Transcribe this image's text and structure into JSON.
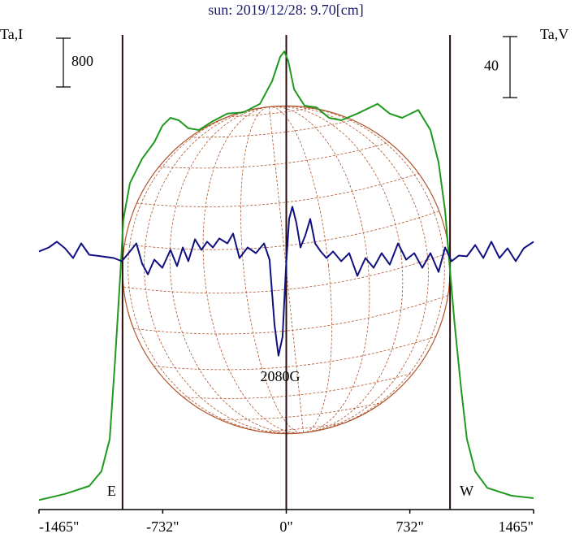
{
  "chart_data": {
    "type": "line",
    "title": "sun: 2019/12/28: 9.70[cm]",
    "xlim": [
      -1465,
      1465
    ],
    "xticks": [
      {
        "value": -1465,
        "label": "-1465\""
      },
      {
        "value": -732,
        "label": "-732\""
      },
      {
        "value": 0,
        "label": "0\""
      },
      {
        "value": 732,
        "label": "732\""
      },
      {
        "value": 1465,
        "label": "1465\""
      }
    ],
    "ylim": [
      0,
      7760
    ],
    "y2lim": [
      -167,
      143
    ],
    "scale_bar": 800,
    "scale_bar_y2": 40,
    "solar_radius": 970,
    "limb_labels": [
      "E",
      "W"
    ],
    "annotation": "2080G",
    "series": [
      {
        "name": "Ta,I",
        "color": "#1f9a1f",
        "x": [
          -1465,
          -1311,
          -1167,
          -1095,
          -1046,
          -1013,
          -984,
          -965,
          -926,
          -854,
          -782,
          -734,
          -686,
          -637,
          -580,
          -517,
          -445,
          -349,
          -253,
          -156,
          -84,
          -36,
          -12,
          12,
          46,
          108,
          180,
          253,
          325,
          421,
          541,
          613,
          686,
          782,
          854,
          902,
          941,
          969,
          998,
          1037,
          1070,
          1119,
          1191,
          1335,
          1465
        ],
        "values": [
          130,
          230,
          360,
          600,
          1130,
          2470,
          3800,
          4730,
          5330,
          5730,
          6000,
          6270,
          6400,
          6360,
          6230,
          6200,
          6330,
          6470,
          6490,
          6630,
          7000,
          7400,
          7490,
          7330,
          6870,
          6600,
          6570,
          6400,
          6360,
          6470,
          6630,
          6470,
          6400,
          6530,
          6200,
          5670,
          4870,
          3930,
          3000,
          1930,
          1130,
          600,
          330,
          200,
          160
        ]
      },
      {
        "name": "Ta,V",
        "color": "#101080",
        "axis": "y2",
        "x": [
          -1465,
          -1407,
          -1359,
          -1311,
          -1263,
          -1215,
          -1167,
          -1095,
          -1022,
          -974,
          -926,
          -888,
          -854,
          -820,
          -782,
          -734,
          -686,
          -647,
          -613,
          -580,
          -541,
          -503,
          -469,
          -435,
          -397,
          -349,
          -315,
          -277,
          -229,
          -180,
          -132,
          -99,
          -70,
          -46,
          -22,
          -2,
          17,
          36,
          60,
          84,
          113,
          142,
          171,
          204,
          238,
          277,
          325,
          373,
          421,
          469,
          517,
          565,
          613,
          662,
          710,
          758,
          806,
          854,
          902,
          941,
          979,
          1022,
          1070,
          1119,
          1167,
          1215,
          1263,
          1311,
          1359,
          1407,
          1465
        ],
        "values": [
          1.1,
          3.7,
          7.5,
          3.2,
          -3.2,
          6.4,
          -1.1,
          -2.1,
          -3.2,
          -5.3,
          1.1,
          6.4,
          -6.9,
          -13.9,
          -4.3,
          -9.6,
          2.1,
          -8.5,
          3.7,
          -5.3,
          9.1,
          2.1,
          7.5,
          3.7,
          9.6,
          6.4,
          12.8,
          -3.2,
          3.7,
          0,
          6.4,
          -4.3,
          -46.9,
          -67.2,
          -54.9,
          -9.6,
          22.4,
          30.4,
          19.7,
          3.7,
          11.7,
          22.4,
          6.4,
          1.1,
          -3.2,
          1.1,
          -5.3,
          0,
          -14.9,
          -3.2,
          -9.6,
          0,
          -7.5,
          6.4,
          -4.3,
          0,
          -9.6,
          0,
          -12.3,
          3.7,
          -5.3,
          -1.6,
          -2.1,
          5.3,
          -3.2,
          7.5,
          -3.2,
          3.2,
          -5.3,
          3.2,
          7.5
        ]
      }
    ]
  }
}
